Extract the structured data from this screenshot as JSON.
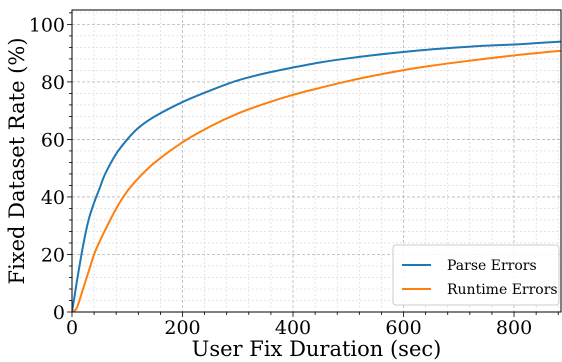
{
  "chart_data": {
    "type": "line",
    "title": "",
    "xlabel": "User Fix Duration (sec)",
    "ylabel": "Fixed Dataset Rate (%)",
    "xlim": [
      0,
      885
    ],
    "ylim": [
      0,
      105
    ],
    "xticks": [
      0,
      200,
      400,
      600,
      800
    ],
    "yticks": [
      0,
      20,
      40,
      60,
      80,
      100
    ],
    "grid": true,
    "legend_position": "bottom-right",
    "series": [
      {
        "name": "Parse Errors",
        "color": "#1f77b4",
        "x": [
          0,
          5,
          10,
          20,
          30,
          40,
          50,
          60,
          80,
          100,
          120,
          150,
          200,
          250,
          300,
          350,
          400,
          450,
          500,
          550,
          600,
          650,
          700,
          750,
          800,
          850,
          885
        ],
        "y": [
          0,
          6,
          12,
          23,
          32,
          38,
          43,
          48,
          55,
          60,
          64,
          68,
          73,
          77,
          80.5,
          83,
          85,
          86.8,
          88.2,
          89.4,
          90.4,
          91.3,
          92.0,
          92.6,
          93.0,
          93.6,
          94.0
        ]
      },
      {
        "name": "Runtime Errors",
        "color": "#ff7f0e",
        "x": [
          0,
          5,
          10,
          20,
          30,
          40,
          50,
          60,
          80,
          100,
          120,
          150,
          200,
          250,
          300,
          350,
          400,
          450,
          500,
          550,
          600,
          650,
          700,
          750,
          800,
          850,
          885
        ],
        "y": [
          0,
          0.5,
          2,
          8,
          14,
          20,
          24.5,
          28.5,
          36,
          42,
          46.5,
          52,
          59,
          64.5,
          69,
          72.5,
          75.5,
          78,
          80.3,
          82.3,
          84.1,
          85.6,
          86.9,
          88.1,
          89.2,
          90.2,
          90.8
        ]
      }
    ]
  }
}
